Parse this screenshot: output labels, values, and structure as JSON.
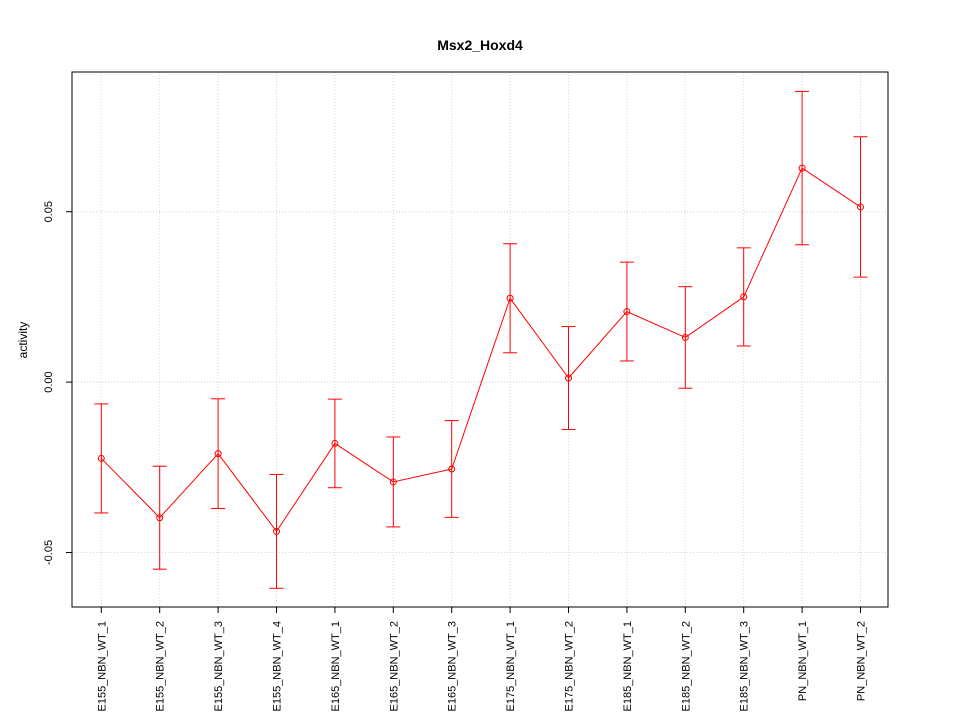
{
  "chart_data": {
    "type": "line",
    "title": "Msx2_Hoxd4",
    "xlabel": "",
    "ylabel": "activity",
    "ylim": [
      -0.066,
      0.091
    ],
    "y_ticks": [
      {
        "value": 0.05,
        "label": "0.05"
      },
      {
        "value": 0.0,
        "label": "0.00"
      },
      {
        "value": -0.05,
        "label": "-0.05"
      }
    ],
    "grid": true,
    "series_color": "#ff0000",
    "grid_color": "#d3d3d3",
    "categories": [
      "E155_NBN_WT_1",
      "E155_NBN_WT_2",
      "E155_NBN_WT_3",
      "E155_NBN_WT_4",
      "E165_NBN_WT_1",
      "E165_NBN_WT_2",
      "E165_NBN_WT_3",
      "E175_NBN_WT_1",
      "E175_NBN_WT_2",
      "E185_NBN_WT_1",
      "E185_NBN_WT_2",
      "E185_NBN_WT_3",
      "PN_NBN_WT_1",
      "PN_NBN_WT_2"
    ],
    "series": [
      {
        "values": [
          -0.0224,
          -0.0398,
          -0.021,
          -0.0438,
          -0.018,
          -0.0293,
          -0.0255,
          0.0246,
          0.0012,
          0.0207,
          0.0131,
          0.025,
          0.0628,
          0.0514
        ],
        "lower": [
          -0.0384,
          -0.0549,
          -0.0371,
          -0.0605,
          -0.031,
          -0.0425,
          -0.0397,
          0.0086,
          -0.0139,
          0.0062,
          -0.0018,
          0.0106,
          0.0403,
          0.0308
        ],
        "upper": [
          -0.0064,
          -0.0247,
          -0.0049,
          -0.0271,
          -0.005,
          -0.0161,
          -0.0113,
          0.0406,
          0.0163,
          0.0352,
          0.028,
          0.0394,
          0.0853,
          0.072
        ]
      }
    ]
  }
}
